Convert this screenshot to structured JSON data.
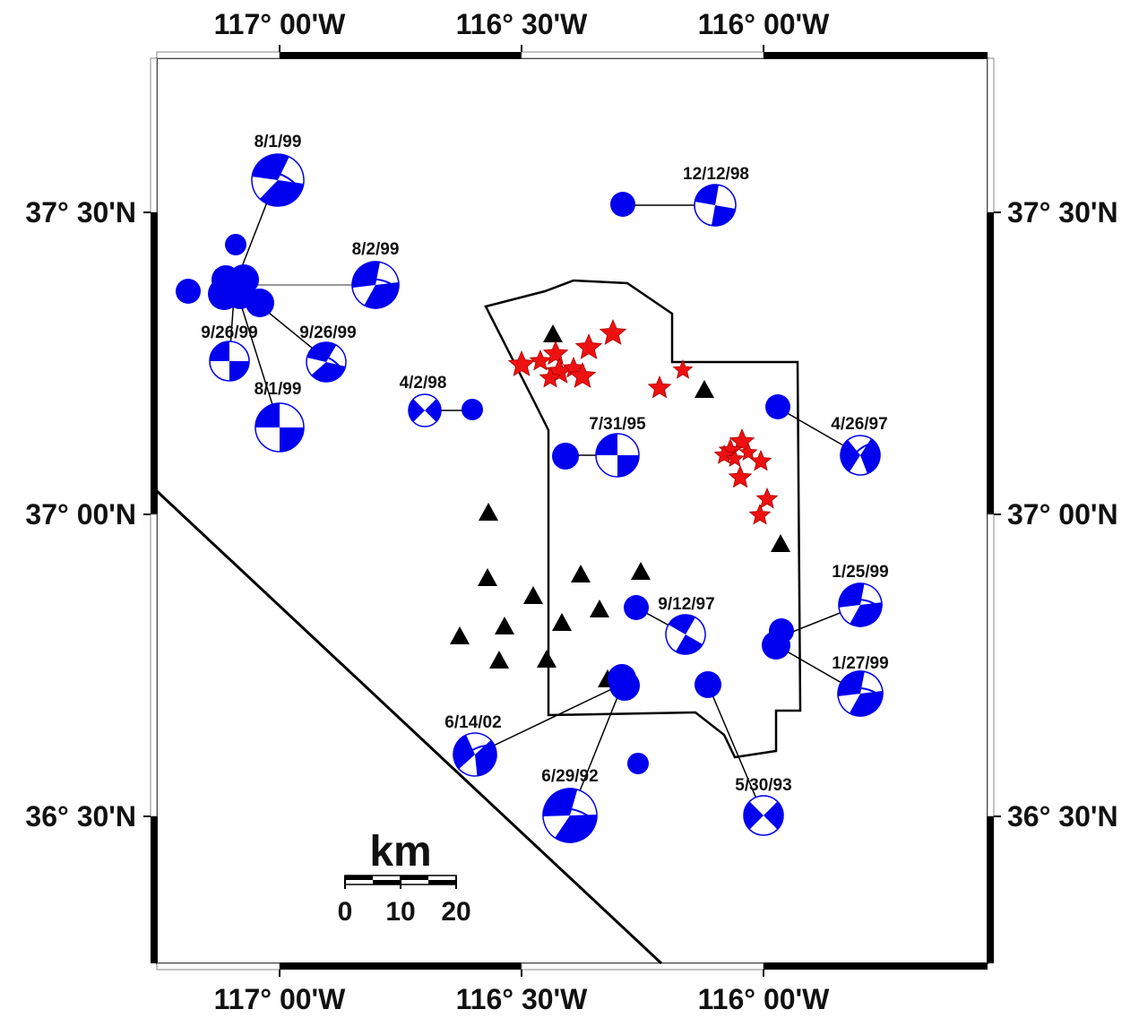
{
  "axes": {
    "top_labels": [
      "117° 00'W",
      "116° 30'W",
      "116° 00'W"
    ],
    "bottom_labels": [
      "117° 00'W",
      "116° 30'W",
      "116° 00'W"
    ],
    "left_labels": [
      "37° 30'N",
      "37° 00'N",
      "36° 30'N"
    ],
    "right_labels": [
      "37° 30'N",
      "37° 00'N",
      "36° 30'N"
    ]
  },
  "scale_bar": {
    "title": "km",
    "ticks": [
      "0",
      "10",
      "20"
    ]
  },
  "colors": {
    "mechanism": "#0000ee",
    "star": "#ee1111",
    "station": "#000000",
    "frame": "#000000"
  },
  "events": [
    {
      "id": "ev-8-1-99-a",
      "date": "8/1/99"
    },
    {
      "id": "ev-8-2-99",
      "date": "8/2/99"
    },
    {
      "id": "ev-9-26-99-a",
      "date": "9/26/99"
    },
    {
      "id": "ev-9-26-99-b",
      "date": "9/26/99"
    },
    {
      "id": "ev-8-1-99-b",
      "date": "8/1/99"
    },
    {
      "id": "ev-4-2-98",
      "date": "4/2/98"
    },
    {
      "id": "ev-12-12-98",
      "date": "12/12/98"
    },
    {
      "id": "ev-7-31-95",
      "date": "7/31/95"
    },
    {
      "id": "ev-4-26-97",
      "date": "4/26/97"
    },
    {
      "id": "ev-1-25-99",
      "date": "1/25/99"
    },
    {
      "id": "ev-9-12-97",
      "date": "9/12/97"
    },
    {
      "id": "ev-1-27-99",
      "date": "1/27/99"
    },
    {
      "id": "ev-6-14-02",
      "date": "6/14/02"
    },
    {
      "id": "ev-6-29-92",
      "date": "6/29/92"
    },
    {
      "id": "ev-5-30-93",
      "date": "5/30/93"
    }
  ]
}
